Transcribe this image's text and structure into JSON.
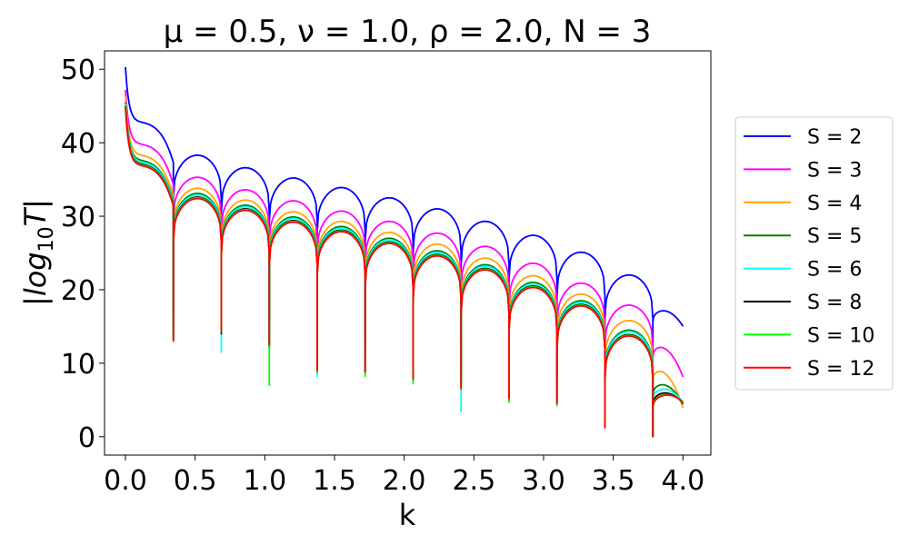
{
  "chart_data": {
    "type": "line",
    "title": "μ = 0.5, ν = 1.0, ρ = 2.0, N = 3",
    "xlabel": "k",
    "ylabel": "|log10T|",
    "xlim": [
      -0.15,
      4.2
    ],
    "ylim": [
      -2.5,
      52.5
    ],
    "xticks": [
      0.0,
      0.5,
      1.0,
      1.5,
      2.0,
      2.5,
      3.0,
      3.5,
      4.0
    ],
    "xtick_labels": [
      "0.0",
      "0.5",
      "1.0",
      "1.5",
      "2.0",
      "2.5",
      "3.0",
      "3.5",
      "4.0"
    ],
    "yticks": [
      0,
      10,
      20,
      30,
      40,
      50
    ],
    "ytick_labels": [
      "0",
      "10",
      "20",
      "30",
      "40",
      "50"
    ],
    "grid": false,
    "legend_position": "right, outside",
    "dip_positions": [
      0.344,
      0.688,
      1.032,
      1.376,
      1.72,
      2.064,
      2.408,
      2.752,
      3.096,
      3.44,
      3.784
    ],
    "series": [
      {
        "name": "S = 2",
        "color": "#0000ff",
        "start_value": 50.3,
        "hump_peaks": [
          38.3,
          36.6,
          35.2,
          33.9,
          32.5,
          31.0,
          29.3,
          27.4,
          25.1,
          22.0,
          17.6
        ],
        "dip_depths": [
          17.5,
          16.6,
          15.5,
          13.3,
          13.0,
          12.0,
          13.1,
          11.3,
          8.2,
          4.6,
          8.7
        ],
        "end_value": 15.4
      },
      {
        "name": "S = 3",
        "color": "#ff00ff",
        "start_value": 47.2,
        "hump_peaks": [
          35.3,
          33.6,
          32.1,
          30.7,
          29.3,
          27.7,
          25.9,
          23.6,
          20.9,
          17.9,
          12.8
        ],
        "dip_depths": [
          16.5,
          16.0,
          14.5,
          10.5,
          11.5,
          10.7,
          9.2,
          8.3,
          7.3,
          4.5,
          2.0
        ],
        "end_value": 8.5
      },
      {
        "name": "S = 4",
        "color": "#ffa500",
        "start_value": 46.3,
        "hump_peaks": [
          33.8,
          32.2,
          30.6,
          29.3,
          27.8,
          26.2,
          24.3,
          21.9,
          19.4,
          15.8,
          9.6
        ],
        "dip_depths": [
          15.5,
          15.0,
          13.0,
          10.5,
          10.5,
          9.5,
          8.5,
          7.0,
          6.8,
          3.5,
          0.3
        ],
        "end_value": 4.3
      },
      {
        "name": "S = 5",
        "color": "#008000",
        "start_value": 45.5,
        "hump_peaks": [
          33.1,
          31.5,
          29.9,
          28.6,
          27.0,
          25.3,
          23.4,
          21.0,
          18.5,
          14.5,
          7.6
        ],
        "dip_depths": [
          14.5,
          14.3,
          12.0,
          9.8,
          9.8,
          8.5,
          7.2,
          4.8,
          5.5,
          2.5,
          0.0
        ],
        "end_value": 4.8
      },
      {
        "name": "S = 6",
        "color": "#00ffff",
        "start_value": 45.3,
        "hump_peaks": [
          32.9,
          31.3,
          29.7,
          28.4,
          26.8,
          25.1,
          23.2,
          20.8,
          18.3,
          14.3,
          6.9
        ],
        "dip_depths": [
          13.5,
          11.5,
          12.0,
          8.2,
          9.0,
          8.0,
          3.4,
          5.0,
          5.0,
          2.0,
          0.0
        ],
        "end_value": 5.0
      },
      {
        "name": "S = 8",
        "color": "#000000",
        "start_value": 45.0,
        "hump_peaks": [
          32.6,
          31.0,
          29.4,
          28.1,
          26.5,
          24.8,
          22.9,
          20.5,
          18.0,
          13.9,
          6.3
        ],
        "dip_depths": [
          13.2,
          14.0,
          12.0,
          9.0,
          8.8,
          7.8,
          6.8,
          5.0,
          4.5,
          1.5,
          0.0
        ],
        "end_value": 4.9
      },
      {
        "name": "S = 10",
        "color": "#00ff00",
        "start_value": 44.9,
        "hump_peaks": [
          32.5,
          30.9,
          29.3,
          28.0,
          26.4,
          24.7,
          22.8,
          20.4,
          17.9,
          13.8,
          6.0
        ],
        "dip_depths": [
          13.2,
          14.2,
          7.0,
          8.7,
          8.2,
          7.2,
          6.5,
          4.7,
          4.2,
          1.5,
          0.0
        ],
        "end_value": 5.0
      },
      {
        "name": "S = 12",
        "color": "#ff0000",
        "start_value": 44.8,
        "hump_peaks": [
          32.4,
          30.8,
          29.2,
          27.9,
          26.3,
          24.6,
          22.7,
          20.3,
          17.8,
          13.7,
          5.9
        ],
        "dip_depths": [
          13.0,
          14.2,
          12.5,
          9.0,
          8.8,
          7.8,
          6.5,
          5.2,
          4.5,
          1.2,
          0.0
        ],
        "end_value": 5.1
      }
    ]
  }
}
